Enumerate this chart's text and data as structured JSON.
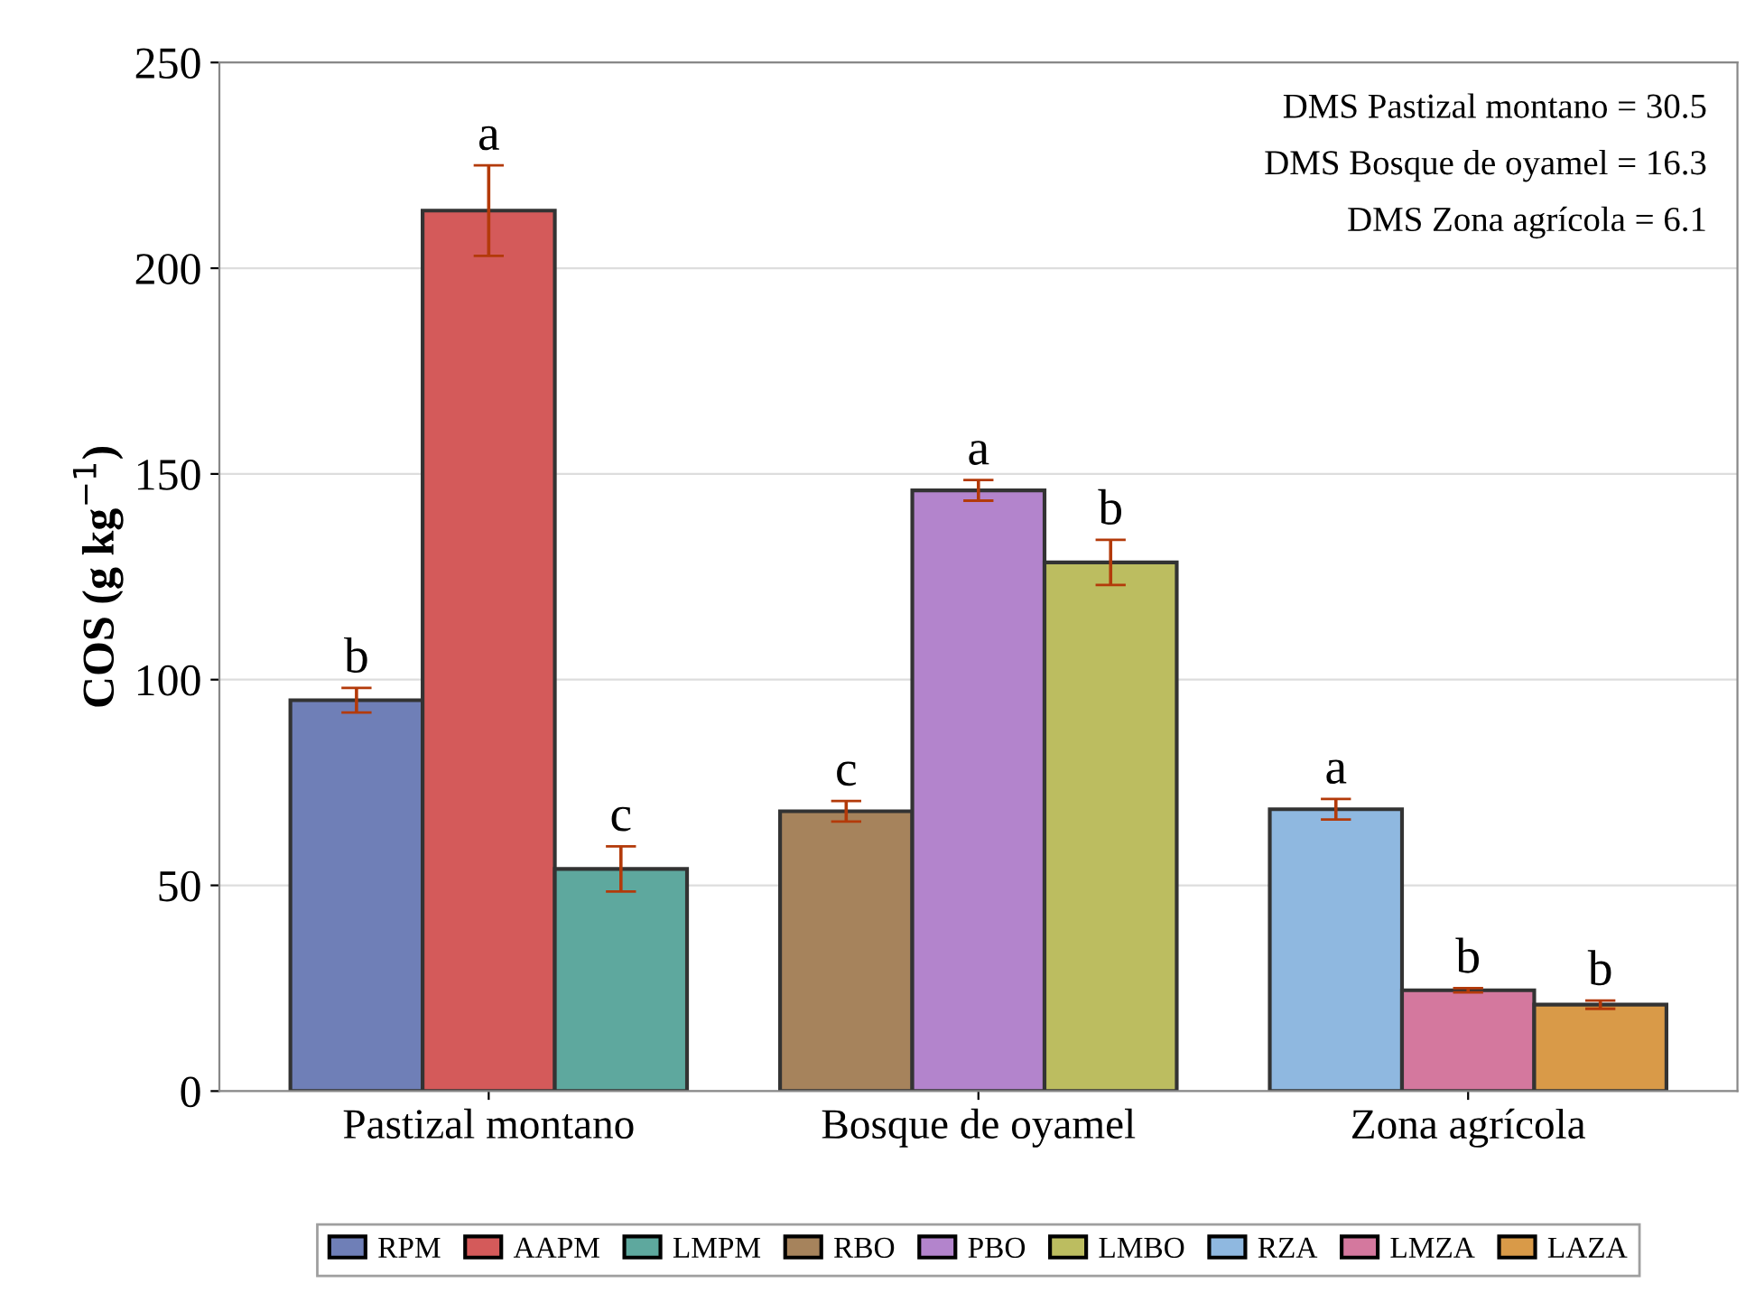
{
  "chart_data": {
    "type": "bar",
    "ylabel": "COS (g kg$^{−1}$)",
    "categories": [
      "Pastizal montano",
      "Bosque de oyamel",
      "Zona agrícola"
    ],
    "series": [
      {
        "name": "RPM",
        "color": "#6f7fb7",
        "values": [
          95,
          null,
          null
        ],
        "errors": [
          3,
          null,
          null
        ],
        "value_labels": [
          "b",
          null,
          null
        ]
      },
      {
        "name": "AAPM",
        "color": "#d45a5a",
        "values": [
          214,
          null,
          null
        ],
        "errors": [
          11,
          null,
          null
        ],
        "value_labels": [
          "a",
          null,
          null
        ]
      },
      {
        "name": "LMPM",
        "color": "#5ea89e",
        "values": [
          54,
          null,
          null
        ],
        "errors": [
          5.5,
          null,
          null
        ],
        "value_labels": [
          "c",
          null,
          null
        ]
      },
      {
        "name": "RBO",
        "color": "#a6835c",
        "values": [
          null,
          68,
          null
        ],
        "errors": [
          null,
          2.5,
          null
        ],
        "value_labels": [
          null,
          "c",
          null
        ]
      },
      {
        "name": "PBO",
        "color": "#b384cc",
        "values": [
          null,
          146,
          null
        ],
        "errors": [
          null,
          2.5,
          null
        ],
        "value_labels": [
          null,
          "a",
          null
        ]
      },
      {
        "name": "LMBO",
        "color": "#bcbd60",
        "values": [
          null,
          128.5,
          null
        ],
        "errors": [
          null,
          5.5,
          null
        ],
        "value_labels": [
          null,
          "b",
          null
        ]
      },
      {
        "name": "RZA",
        "color": "#8fb8e0",
        "values": [
          null,
          null,
          68.5
        ],
        "errors": [
          null,
          null,
          2.5
        ],
        "value_labels": [
          null,
          null,
          "a"
        ]
      },
      {
        "name": "LMZA",
        "color": "#d4789e",
        "values": [
          null,
          null,
          24.5
        ],
        "errors": [
          null,
          null,
          0.5
        ],
        "value_labels": [
          null,
          null,
          "b"
        ]
      },
      {
        "name": "LAZA",
        "color": "#d99a48",
        "values": [
          null,
          null,
          21
        ],
        "errors": [
          null,
          null,
          1
        ],
        "value_labels": [
          null,
          null,
          "b"
        ]
      }
    ],
    "ylim": [
      0,
      250
    ],
    "yticks": [
      0,
      50,
      100,
      150,
      200,
      250
    ],
    "grid": "y",
    "legend": "bottom",
    "annotations": [
      "DMS Pastizal montano = 30.5",
      "DMS Bosque de oyamel = 16.3",
      "DMS Zona agrícola = 6.1"
    ]
  }
}
